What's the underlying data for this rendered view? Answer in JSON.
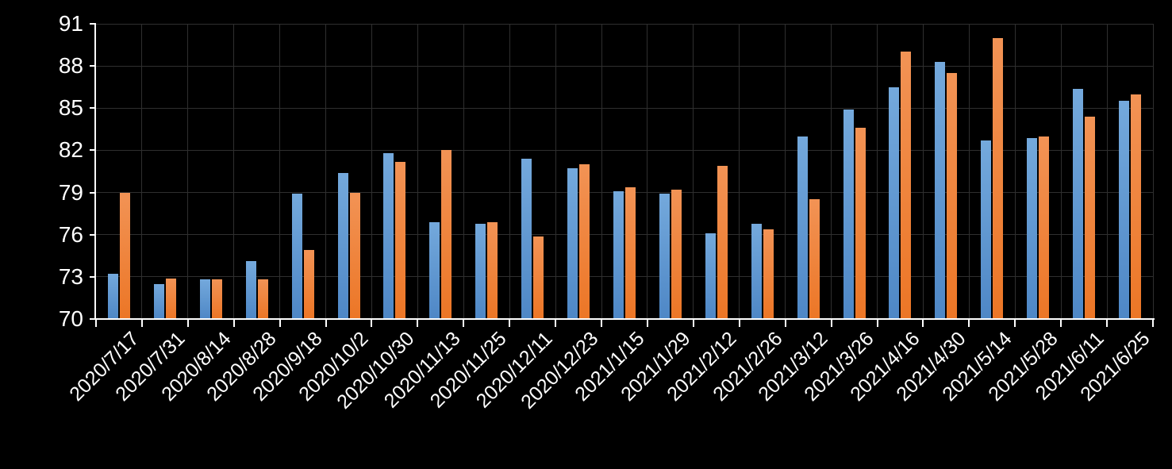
{
  "chart_data": {
    "type": "bar",
    "title": "",
    "xlabel": "",
    "ylabel": "",
    "categories": [
      "2020/7/17",
      "2020/7/31",
      "2020/8/14",
      "2020/8/28",
      "2020/9/18",
      "2020/10/2",
      "2020/10/30",
      "2020/11/13",
      "2020/11/25",
      "2020/12/11",
      "2020/12/23",
      "2021/1/15",
      "2021/1/29",
      "2021/2/12",
      "2021/2/26",
      "2021/3/12",
      "2021/3/26",
      "2021/4/16",
      "2021/4/30",
      "2021/5/14",
      "2021/5/28",
      "2021/6/11",
      "2021/6/25"
    ],
    "series": [
      {
        "name": "blue",
        "color_top": "#74a9dc",
        "color_bottom": "#4e87c6",
        "values": [
          73.2,
          72.5,
          72.8,
          74.1,
          78.9,
          80.4,
          81.8,
          76.9,
          76.8,
          81.4,
          80.7,
          79.1,
          78.9,
          76.1,
          76.8,
          83.0,
          84.9,
          86.5,
          88.3,
          82.7,
          82.9,
          86.4,
          85.5
        ]
      },
      {
        "name": "orange",
        "color_top": "#f29355",
        "color_bottom": "#ec7626",
        "values": [
          79.0,
          72.9,
          72.8,
          72.8,
          74.9,
          79.0,
          81.2,
          82.0,
          76.9,
          75.9,
          81.0,
          79.4,
          79.2,
          80.9,
          76.4,
          78.5,
          83.6,
          89.0,
          87.5,
          90.0,
          83.0,
          84.4,
          86.0
        ]
      }
    ],
    "ylim": [
      70,
      91
    ],
    "yticks": [
      70,
      73,
      76,
      79,
      82,
      85,
      88,
      91
    ],
    "grid": true,
    "legend_position": "none",
    "x_tick_rotation_deg": 45,
    "background_color": "#000000",
    "axis_color": "#ffffff",
    "gridline_color": "#2f2f2f",
    "tick_label_color": "#ffffff"
  }
}
